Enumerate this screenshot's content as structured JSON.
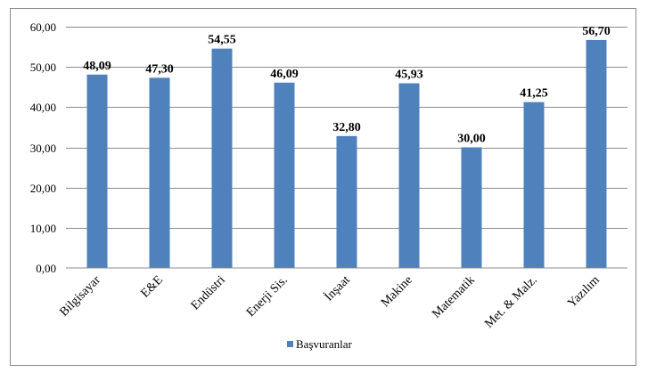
{
  "chart_data": {
    "type": "bar",
    "categories": [
      "Bilgisayar",
      "E&E",
      "Endüstri",
      "Enerji Sis.",
      "İnşaat",
      "Makine",
      "Matematik",
      "Met. & Malz.",
      "Yazılım"
    ],
    "series": [
      {
        "name": "Başvuranlar",
        "values": [
          48.09,
          47.3,
          54.55,
          46.09,
          32.8,
          45.93,
          30.0,
          41.25,
          56.7
        ],
        "value_labels": [
          "48,09",
          "47,30",
          "54,55",
          "46,09",
          "32,80",
          "45,93",
          "30,00",
          "41,25",
          "56,70"
        ]
      }
    ],
    "ylim": [
      0,
      60
    ],
    "yticks": [
      0,
      10,
      20,
      30,
      40,
      50,
      60
    ],
    "ytick_labels": [
      "0,00",
      "10,00",
      "20,00",
      "30,00",
      "40,00",
      "50,00",
      "60,00"
    ],
    "grid": true,
    "legend": "bottom",
    "color": "#4f81bd",
    "title": "",
    "xlabel": "",
    "ylabel": ""
  }
}
